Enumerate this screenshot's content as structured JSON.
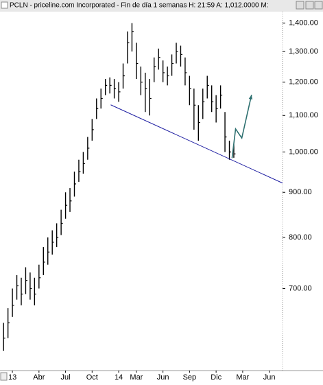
{
  "header": {
    "title": "PCLN - priceline.com Incorporated  - Fin de día 1 semanas  H: 21:59  A: 1,012.0000  M:"
  },
  "chart_data": {
    "type": "ohlc",
    "log_scale": true,
    "color": "#000000",
    "xlim": [
      -1.4,
      30.5
    ],
    "ylim": [
      565,
      1440
    ],
    "xticks": [
      {
        "value": 0,
        "label": "13"
      },
      {
        "value": 3,
        "label": "Abr"
      },
      {
        "value": 6,
        "label": "Jul"
      },
      {
        "value": 9,
        "label": "Oct"
      },
      {
        "value": 12,
        "label": "14"
      },
      {
        "value": 14,
        "label": "Mar"
      },
      {
        "value": 17,
        "label": "Jun"
      },
      {
        "value": 20,
        "label": "Sep"
      },
      {
        "value": 23,
        "label": "Dic"
      },
      {
        "value": 26,
        "label": "Mar"
      },
      {
        "value": 29,
        "label": "Jun"
      }
    ],
    "yticks": [
      {
        "value": 700,
        "label": "700.00"
      },
      {
        "value": 800,
        "label": "800.00"
      },
      {
        "value": 900,
        "label": "900.00"
      },
      {
        "value": 1000,
        "label": "1,000.00"
      },
      {
        "value": 1100,
        "label": "1,100.00"
      },
      {
        "value": 1200,
        "label": "1,200.00"
      },
      {
        "value": 1300,
        "label": "1,300.00"
      },
      {
        "value": 1400,
        "label": "1,400.00"
      }
    ],
    "x": [
      -1,
      -0.5,
      0,
      0.5,
      1,
      1.5,
      2,
      2.5,
      3,
      3.5,
      4,
      4.5,
      5,
      5.5,
      6,
      6.5,
      7,
      7.5,
      8,
      8.5,
      9,
      9.5,
      10,
      10.5,
      11,
      11.5,
      12,
      12.5,
      13,
      13.5,
      14,
      14.5,
      15,
      15.5,
      16,
      16.5,
      17,
      17.5,
      18,
      18.5,
      19,
      19.5,
      20,
      20.5,
      21,
      21.5,
      22,
      22.5,
      23,
      23.5,
      24,
      24.5,
      25
    ],
    "high": [
      640,
      665,
      700,
      725,
      720,
      740,
      730,
      720,
      745,
      780,
      800,
      815,
      830,
      860,
      900,
      910,
      950,
      980,
      1000,
      1040,
      1090,
      1150,
      1180,
      1210,
      1215,
      1210,
      1200,
      1260,
      1370,
      1400,
      1330,
      1250,
      1230,
      1210,
      1280,
      1310,
      1270,
      1250,
      1290,
      1330,
      1320,
      1280,
      1220,
      1180,
      1130,
      1180,
      1220,
      1190,
      1160,
      1190,
      1110,
      1030,
      1020
    ],
    "low": [
      595,
      615,
      650,
      680,
      670,
      690,
      680,
      670,
      700,
      725,
      745,
      765,
      780,
      805,
      840,
      855,
      890,
      925,
      945,
      980,
      1030,
      1090,
      1120,
      1160,
      1165,
      1150,
      1140,
      1180,
      1260,
      1300,
      1210,
      1160,
      1110,
      1100,
      1200,
      1240,
      1200,
      1190,
      1220,
      1260,
      1250,
      1190,
      1130,
      1060,
      1030,
      1090,
      1150,
      1110,
      1080,
      1120,
      1000,
      980,
      985
    ],
    "close": [
      615,
      640,
      670,
      705,
      690,
      715,
      700,
      690,
      720,
      750,
      770,
      790,
      800,
      830,
      870,
      880,
      920,
      950,
      970,
      1010,
      1060,
      1120,
      1150,
      1190,
      1190,
      1180,
      1170,
      1220,
      1330,
      1370,
      1260,
      1200,
      1180,
      1150,
      1250,
      1280,
      1230,
      1220,
      1260,
      1300,
      1290,
      1230,
      1180,
      1130,
      1080,
      1140,
      1190,
      1140,
      1120,
      1160,
      1040,
      1000,
      995
    ],
    "trendline": {
      "color": "#1a1aa0",
      "x": [
        11.1,
        30.5
      ],
      "y": [
        1131,
        922
      ]
    },
    "projection": {
      "color": "#2e7070",
      "x": [
        24.8,
        25.2,
        25.9,
        27
      ],
      "y": [
        984,
        1062,
        1037,
        1161
      ]
    }
  }
}
